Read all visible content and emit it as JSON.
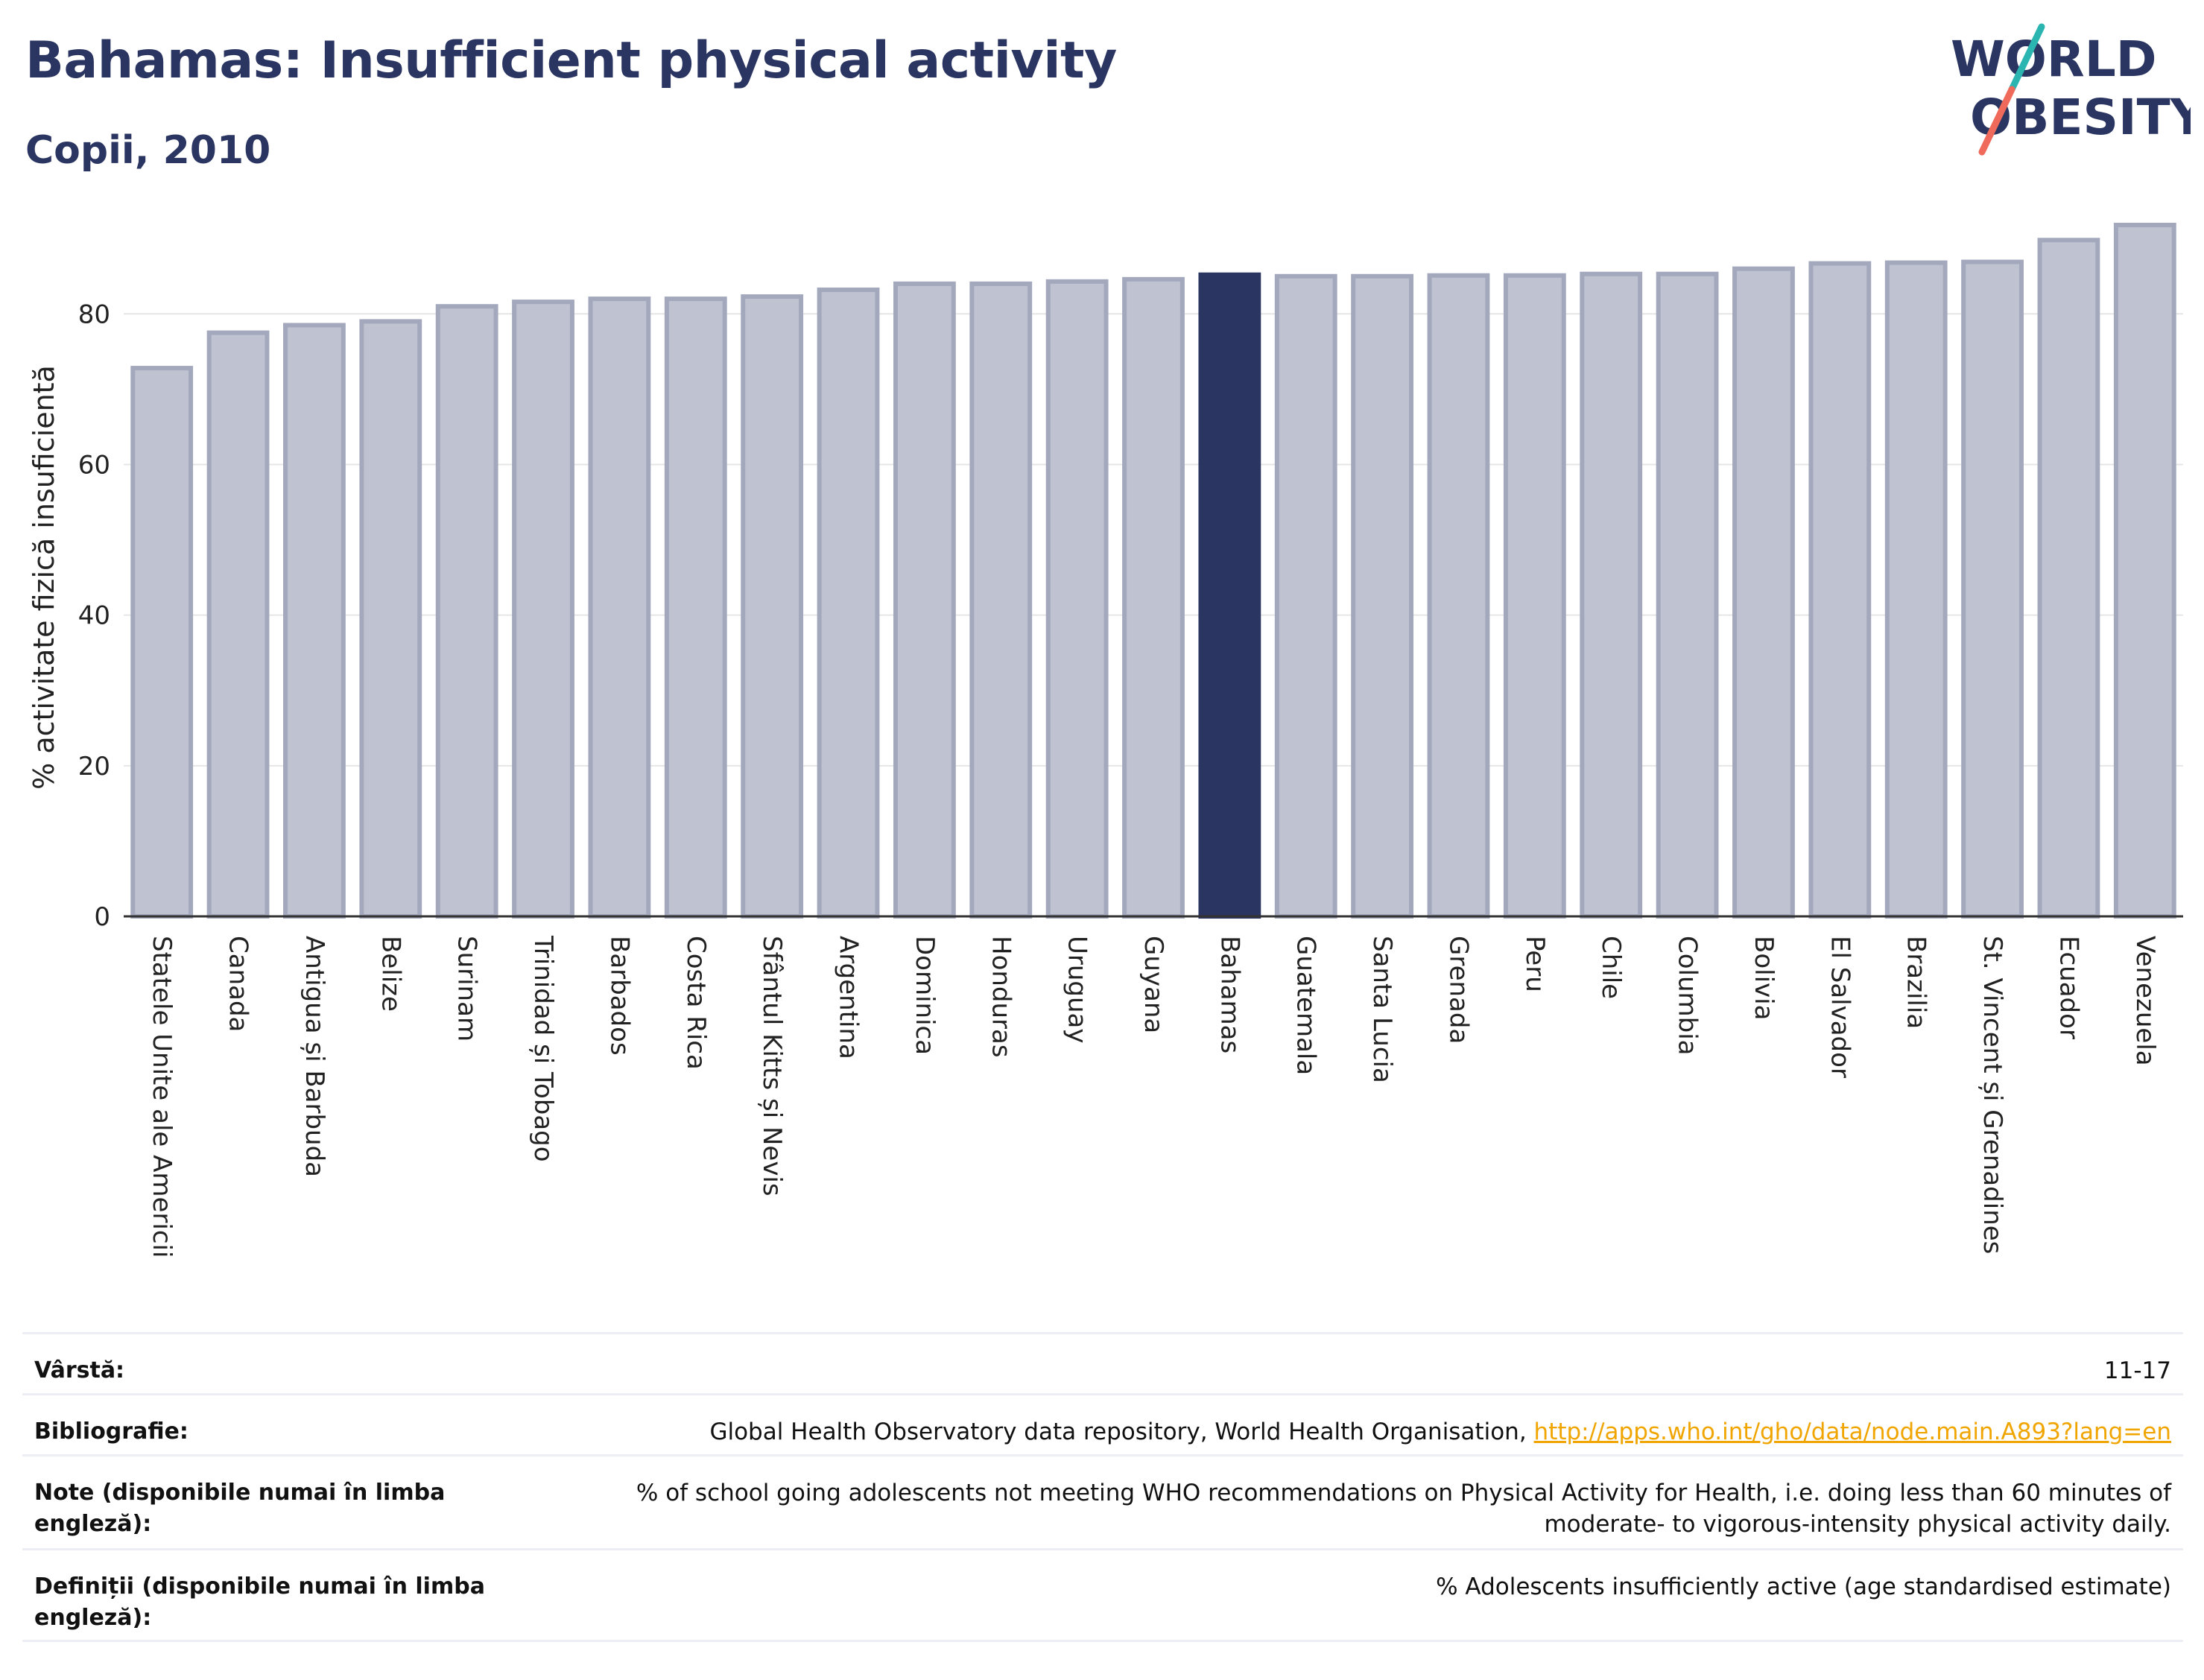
{
  "header": {
    "title": "Bahamas: Insufficient physical activity",
    "subtitle": "Copii, 2010"
  },
  "logo": {
    "line1": "WORLD",
    "line2": "OBESITY",
    "text_color": "#2b3562",
    "slash_top_color": "#2bb5b0",
    "slash_bottom_color": "#ef6a5a"
  },
  "chart_data": {
    "type": "bar",
    "title": "",
    "xlabel": "",
    "ylabel": "% activitate fizică insuficientă",
    "ylim": [
      0,
      92
    ],
    "yticks": [
      0,
      20,
      40,
      60,
      80
    ],
    "grid": true,
    "highlight": "Bahamas",
    "colors": {
      "bar": "#bfc2d0",
      "bar_edge": "#a3a8bd",
      "highlight": "#2b3562"
    },
    "categories": [
      "Statele Unite ale Americii",
      "Canada",
      "Antigua și Barbuda",
      "Belize",
      "Surinam",
      "Trinidad și Tobago",
      "Barbados",
      "Costa Rica",
      "Sfântul Kitts și Nevis",
      "Argentina",
      "Dominica",
      "Honduras",
      "Uruguay",
      "Guyana",
      "Bahamas",
      "Guatemala",
      "Santa Lucia",
      "Grenada",
      "Peru",
      "Chile",
      "Columbia",
      "Bolivia",
      "El Salvador",
      "Brazilia",
      "St. Vincent și Grenadines",
      "Ecuador",
      "Venezuela"
    ],
    "values": [
      72.8,
      77.5,
      78.5,
      79.0,
      81.0,
      81.6,
      82.0,
      82.0,
      82.3,
      83.2,
      84.0,
      84.0,
      84.3,
      84.6,
      85.2,
      85.0,
      85.0,
      85.1,
      85.1,
      85.3,
      85.3,
      86.0,
      86.7,
      86.8,
      86.9,
      89.8,
      91.8
    ]
  },
  "meta": {
    "age_label": "Vârstă:",
    "age_value": "11-17",
    "biblio_label": "Bibliografie:",
    "biblio_text": "Global Health Observatory data repository, World Health Organisation, ",
    "biblio_link": "http://apps.who.int/gho/data/node.main.A893?lang=en",
    "notes_label": "Note (disponibile numai în limba engleză):",
    "notes_value": "% of school going adolescents not meeting WHO recommendations on Physical Activity for Health, i.e. doing less than 60 minutes of moderate- to vigorous-intensity physical activity daily.",
    "defs_label": "Definiții (disponibile numai în limba engleză):",
    "defs_value": "% Adolescents insufficiently active (age standardised estimate)"
  }
}
